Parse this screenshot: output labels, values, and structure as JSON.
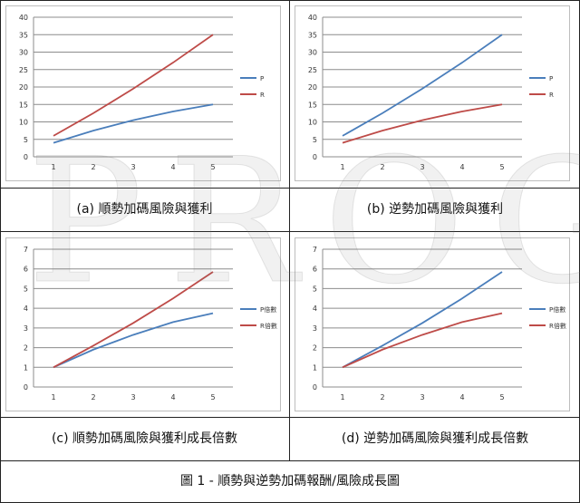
{
  "figure_caption": "圖 1 -  順勢與逆勢加碼報酬/風險成長圖",
  "watermark": "PROG",
  "colors": {
    "P": "#4a7ebb",
    "R": "#be4b48",
    "grid": "#8c8c8c"
  },
  "chart_data": [
    {
      "type": "line",
      "caption": "(a)  順勢加碼風險與獲利",
      "categories": [
        "1",
        "2",
        "3",
        "4",
        "5"
      ],
      "ylim": [
        0,
        40
      ],
      "yticks": [
        "0",
        "5",
        "10",
        "15",
        "20",
        "25",
        "30",
        "35",
        "40"
      ],
      "series": [
        {
          "name": "P",
          "values": [
            4,
            7.5,
            10.5,
            13,
            15
          ]
        },
        {
          "name": "R",
          "values": [
            6,
            12.5,
            19.5,
            27,
            35
          ]
        }
      ],
      "grid": true,
      "legend": "right"
    },
    {
      "type": "line",
      "caption": "(b)  逆勢加碼風險與獲利",
      "categories": [
        "1",
        "2",
        "3",
        "4",
        "5"
      ],
      "ylim": [
        0,
        40
      ],
      "yticks": [
        "0",
        "5",
        "10",
        "15",
        "20",
        "25",
        "30",
        "35",
        "40"
      ],
      "series": [
        {
          "name": "P",
          "values": [
            6,
            12.5,
            19.5,
            27,
            35
          ]
        },
        {
          "name": "R",
          "values": [
            4,
            7.5,
            10.5,
            13,
            15
          ]
        }
      ],
      "grid": true,
      "legend": "right"
    },
    {
      "type": "line",
      "caption": "(c)  順勢加碼風險與獲利成長倍數",
      "categories": [
        "1",
        "2",
        "3",
        "4",
        "5"
      ],
      "ylim": [
        0,
        7
      ],
      "yticks": [
        "0",
        "1",
        "2",
        "3",
        "4",
        "5",
        "6",
        "7"
      ],
      "series": [
        {
          "name": "P倍數",
          "values": [
            1,
            1.9,
            2.65,
            3.3,
            3.75
          ]
        },
        {
          "name": "R倍數",
          "values": [
            1,
            2.1,
            3.25,
            4.5,
            5.85
          ]
        }
      ],
      "grid": true,
      "legend": "right"
    },
    {
      "type": "line",
      "caption": "(d)  逆勢加碼風險與獲利成長倍數",
      "categories": [
        "1",
        "2",
        "3",
        "4",
        "5"
      ],
      "ylim": [
        0,
        7
      ],
      "yticks": [
        "0",
        "1",
        "2",
        "3",
        "4",
        "5",
        "6",
        "7"
      ],
      "series": [
        {
          "name": "P倍數",
          "values": [
            1,
            2.1,
            3.25,
            4.5,
            5.85
          ]
        },
        {
          "name": "R倍數",
          "values": [
            1,
            1.9,
            2.65,
            3.3,
            3.75
          ]
        }
      ],
      "grid": true,
      "legend": "right"
    }
  ]
}
